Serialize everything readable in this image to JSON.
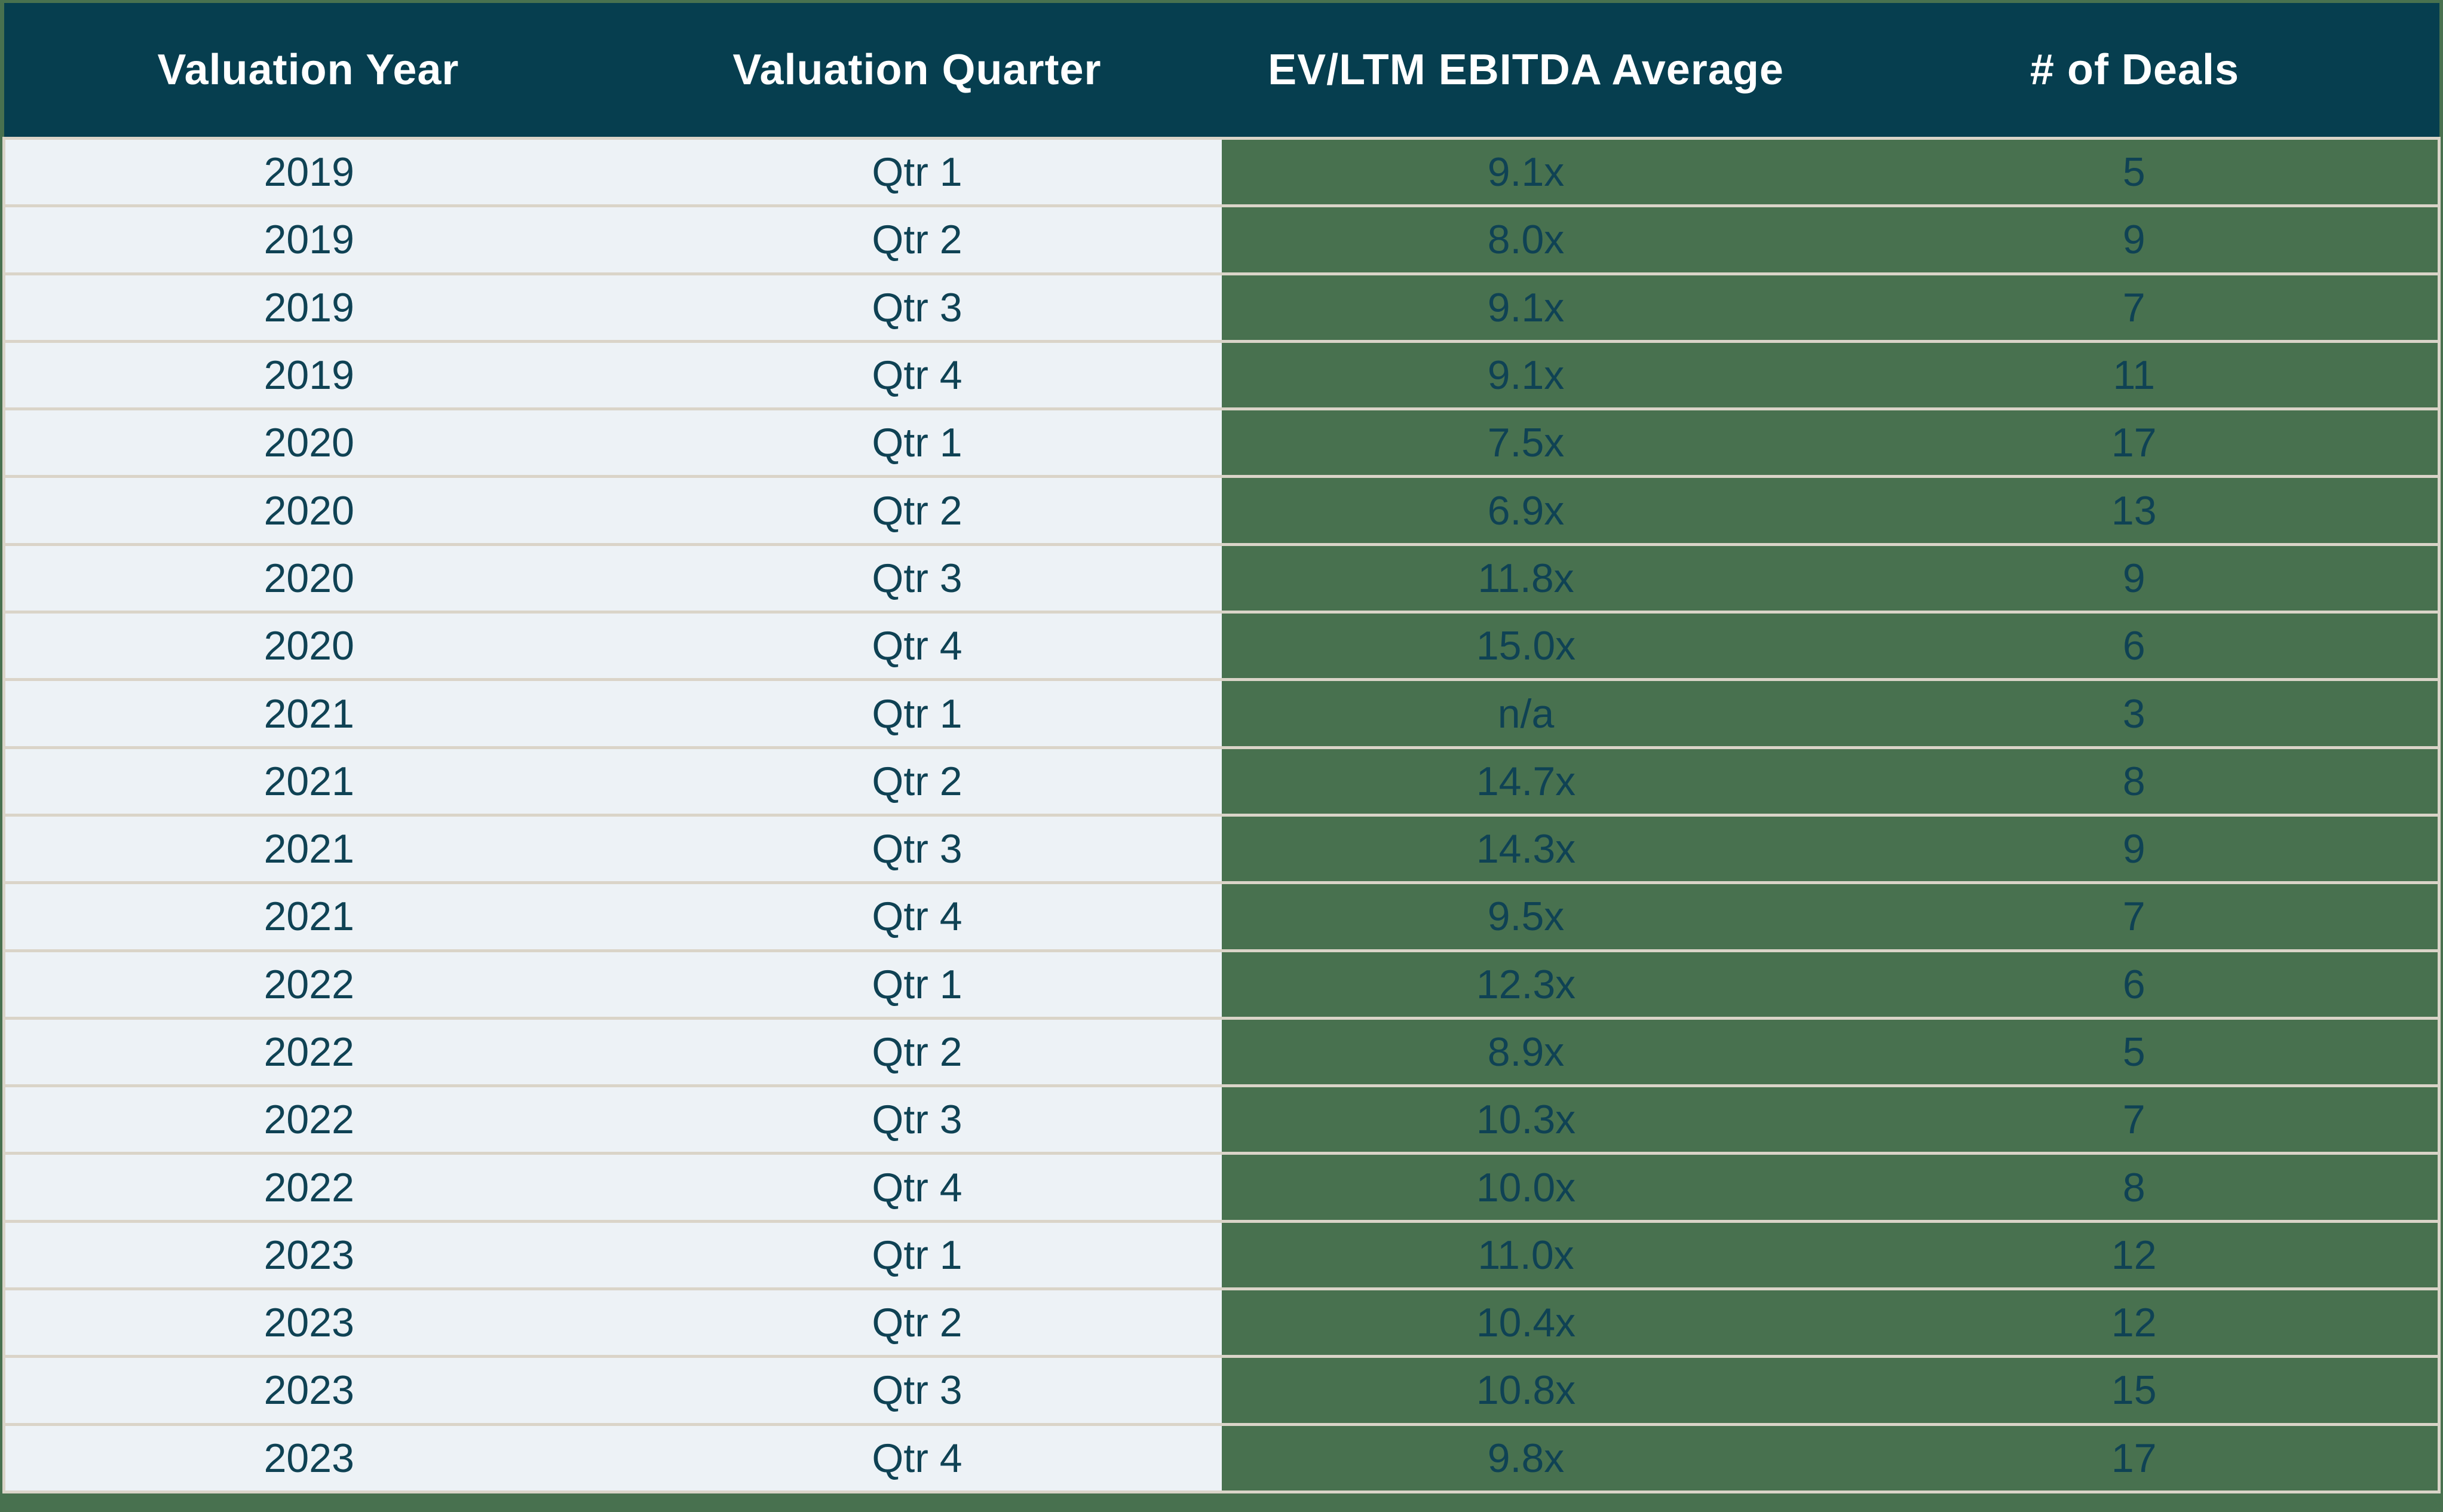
{
  "chart_data": {
    "type": "table",
    "columns": [
      "Valuation Year",
      "Valuation Quarter",
      "EV/LTM EBITDA Average",
      "# of Deals"
    ],
    "rows": [
      [
        "2019",
        "Qtr 1",
        "9.1x",
        "5"
      ],
      [
        "2019",
        "Qtr 2",
        "8.0x",
        "9"
      ],
      [
        "2019",
        "Qtr 3",
        "9.1x",
        "7"
      ],
      [
        "2019",
        "Qtr 4",
        "9.1x",
        "11"
      ],
      [
        "2020",
        "Qtr 1",
        "7.5x",
        "17"
      ],
      [
        "2020",
        "Qtr 2",
        "6.9x",
        "13"
      ],
      [
        "2020",
        "Qtr 3",
        "11.8x",
        "9"
      ],
      [
        "2020",
        "Qtr 4",
        "15.0x",
        "6"
      ],
      [
        "2021",
        "Qtr 1",
        "n/a",
        "3"
      ],
      [
        "2021",
        "Qtr 2",
        "14.7x",
        "8"
      ],
      [
        "2021",
        "Qtr 3",
        "14.3x",
        "9"
      ],
      [
        "2021",
        "Qtr 4",
        "9.5x",
        "7"
      ],
      [
        "2022",
        "Qtr 1",
        "12.3x",
        "6"
      ],
      [
        "2022",
        "Qtr 2",
        "8.9x",
        "5"
      ],
      [
        "2022",
        "Qtr 3",
        "10.3x",
        "7"
      ],
      [
        "2022",
        "Qtr 4",
        "10.0x",
        "8"
      ],
      [
        "2023",
        "Qtr 1",
        "11.0x",
        "12"
      ],
      [
        "2023",
        "Qtr 2",
        "10.4x",
        "12"
      ],
      [
        "2023",
        "Qtr 3",
        "10.8x",
        "15"
      ],
      [
        "2023",
        "Qtr 4",
        "9.8x",
        "17"
      ]
    ]
  },
  "colors": {
    "header_bg": "#063E4F",
    "header_text": "#FFFFFF",
    "light_cell_bg": "#EDF2F6",
    "green_cell_bg": "#48714F",
    "grid_line": "#DAD4C8",
    "cell_text": "#0F4254",
    "frame_bg": "#48714F"
  }
}
